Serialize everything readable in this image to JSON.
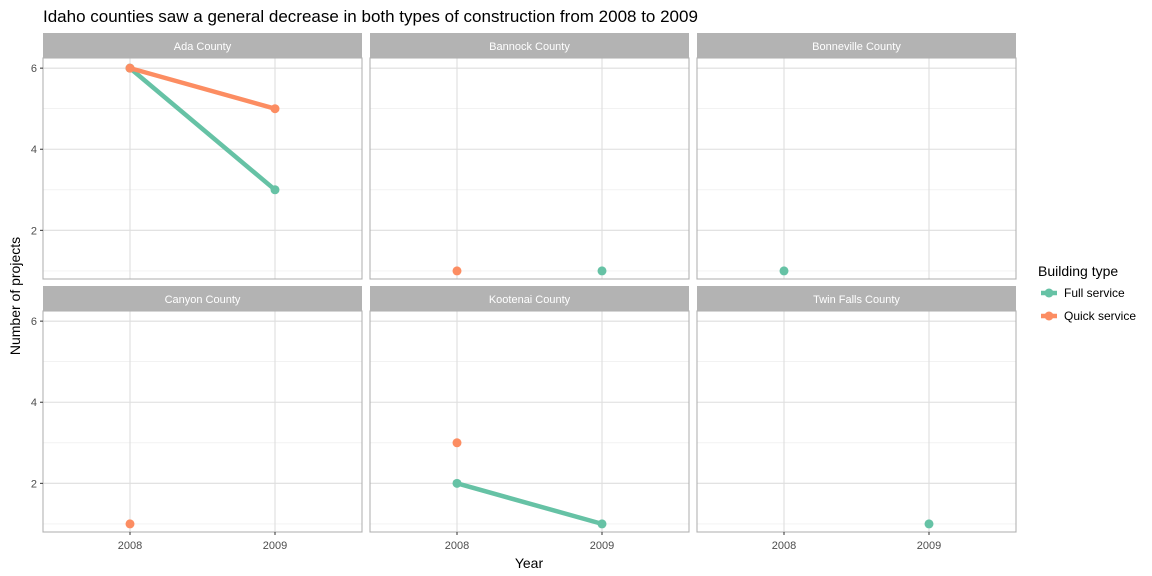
{
  "chart_data": {
    "type": "line",
    "title": "Idaho counties saw a general decrease in both types of construction from 2008 to 2009",
    "xlabel": "Year",
    "ylabel": "Number of projects",
    "x": [
      2008,
      2009
    ],
    "x_tick_labels": [
      "2008",
      "2009"
    ],
    "y_ticks": [
      2,
      4,
      6
    ],
    "ylim": [
      0.8,
      6.25
    ],
    "grid": true,
    "legend": {
      "title": "Building type",
      "position": "right",
      "entries": [
        {
          "name": "Full service",
          "color": "#66c2a5"
        },
        {
          "name": "Quick service",
          "color": "#fc8d62"
        }
      ]
    },
    "facets": [
      {
        "name": "Ada County",
        "series": [
          {
            "name": "Full service",
            "points": [
              [
                2008,
                6
              ],
              [
                2009,
                3
              ]
            ]
          },
          {
            "name": "Quick service",
            "points": [
              [
                2008,
                6
              ],
              [
                2009,
                5
              ]
            ]
          }
        ]
      },
      {
        "name": "Bannock County",
        "series": [
          {
            "name": "Full service",
            "points": [
              [
                2009,
                1
              ]
            ]
          },
          {
            "name": "Quick service",
            "points": [
              [
                2008,
                1
              ]
            ]
          }
        ]
      },
      {
        "name": "Bonneville County",
        "series": [
          {
            "name": "Full service",
            "points": [
              [
                2008,
                1
              ]
            ]
          },
          {
            "name": "Quick service",
            "points": []
          }
        ]
      },
      {
        "name": "Canyon County",
        "series": [
          {
            "name": "Full service",
            "points": []
          },
          {
            "name": "Quick service",
            "points": [
              [
                2008,
                1
              ]
            ]
          }
        ]
      },
      {
        "name": "Kootenai County",
        "series": [
          {
            "name": "Full service",
            "points": [
              [
                2008,
                2
              ],
              [
                2009,
                1
              ]
            ]
          },
          {
            "name": "Quick service",
            "points": [
              [
                2008,
                3
              ]
            ]
          }
        ]
      },
      {
        "name": "Twin Falls County",
        "series": [
          {
            "name": "Full service",
            "points": [
              [
                2009,
                1
              ]
            ]
          },
          {
            "name": "Quick service",
            "points": []
          }
        ]
      }
    ]
  }
}
